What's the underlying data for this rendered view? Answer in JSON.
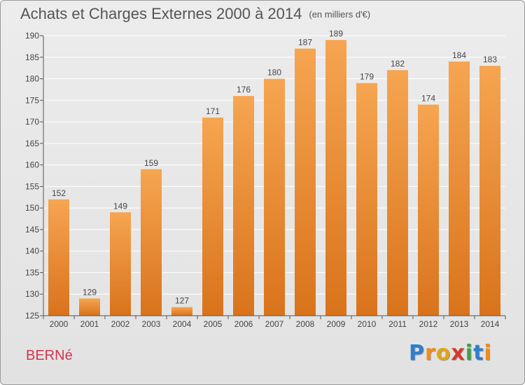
{
  "header": {
    "title": "Achats et Charges Externes 2000 à 2014",
    "subtitle": "(en milliers d'€)"
  },
  "footer": {
    "place": "BERNé",
    "logo_letters": [
      "P",
      "r",
      "o",
      "x",
      "i",
      "t",
      "i"
    ],
    "logo_colors": [
      "#2f7fd0",
      "#f08c1a",
      "#e2a41b",
      "#d43a2a",
      "#3da14a",
      "#2f7fd0",
      "#f08c1a"
    ]
  },
  "colors": {
    "bar_top": "#f6a551",
    "bar_bottom": "#d9731b",
    "grid": "#ffffff",
    "axis_text": "#444444"
  },
  "chart_data": {
    "type": "bar",
    "title": "Achats et Charges Externes 2000 à 2014",
    "subtitle": "(en milliers d'€)",
    "categories": [
      "2000",
      "2001",
      "2002",
      "2003",
      "2004",
      "2005",
      "2006",
      "2007",
      "2008",
      "2009",
      "2010",
      "2011",
      "2012",
      "2013",
      "2014"
    ],
    "values": [
      152,
      129,
      149,
      159,
      127,
      171,
      176,
      180,
      187,
      189,
      179,
      182,
      174,
      184,
      183
    ],
    "ylim": [
      125,
      190
    ],
    "yticks": [
      125,
      130,
      135,
      140,
      145,
      150,
      155,
      160,
      165,
      170,
      175,
      180,
      185,
      190
    ],
    "grid": true
  }
}
